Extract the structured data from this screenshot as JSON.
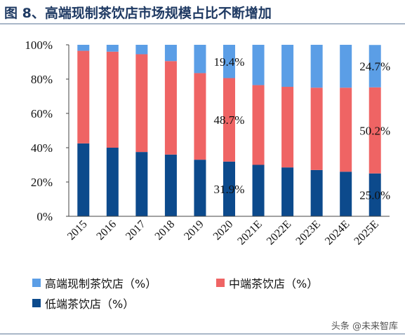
{
  "figure_title": "图 8、高端现制茶饮店市场规模占比不断增加",
  "watermark": "头条 @未来智库",
  "colors": {
    "high": "#5b9ee6",
    "mid": "#ef6464",
    "low": "#0c4a8c",
    "title": "#1f3a63"
  },
  "chart_data": {
    "type": "bar",
    "stacked": true,
    "categories": [
      "2015",
      "2016",
      "2017",
      "2018",
      "2019",
      "2020",
      "2021E",
      "2022E",
      "2023E",
      "2024E",
      "2025E"
    ],
    "series": [
      {
        "name": "低端茶饮店（%）",
        "values": [
          42.5,
          40.0,
          37.5,
          36.0,
          33.0,
          31.9,
          30.0,
          28.5,
          27.0,
          26.0,
          25.0
        ]
      },
      {
        "name": "中端茶饮店（%）",
        "values": [
          54.0,
          56.0,
          57.0,
          54.5,
          50.5,
          48.7,
          46.5,
          47.0,
          48.0,
          49.0,
          50.2
        ]
      },
      {
        "name": "高端现制茶饮店（%）",
        "values": [
          3.5,
          4.0,
          5.5,
          9.5,
          16.5,
          19.4,
          23.5,
          24.5,
          25.0,
          25.0,
          24.7
        ]
      }
    ],
    "yticks": [
      "0%",
      "20%",
      "40%",
      "60%",
      "80%",
      "100%"
    ],
    "ylim": [
      0,
      100
    ],
    "annotations": [
      {
        "category": "2020",
        "series": "高端现制茶饮店（%）",
        "text": "19.4%"
      },
      {
        "category": "2020",
        "series": "中端茶饮店（%）",
        "text": "48.7%"
      },
      {
        "category": "2020",
        "series": "低端茶饮店（%）",
        "text": "31.9%"
      },
      {
        "category": "2025E",
        "series": "高端现制茶饮店（%）",
        "text": "24.7%"
      },
      {
        "category": "2025E",
        "series": "中端茶饮店（%）",
        "text": "50.2%"
      },
      {
        "category": "2025E",
        "series": "低端茶饮店（%）",
        "text": "25.0%"
      }
    ],
    "legend": [
      {
        "label": "高端现制茶饮店（%）"
      },
      {
        "label": "中端茶饮店（%）"
      },
      {
        "label": "低端茶饮店（%）"
      }
    ],
    "legend_position": "bottom",
    "grid": false
  }
}
